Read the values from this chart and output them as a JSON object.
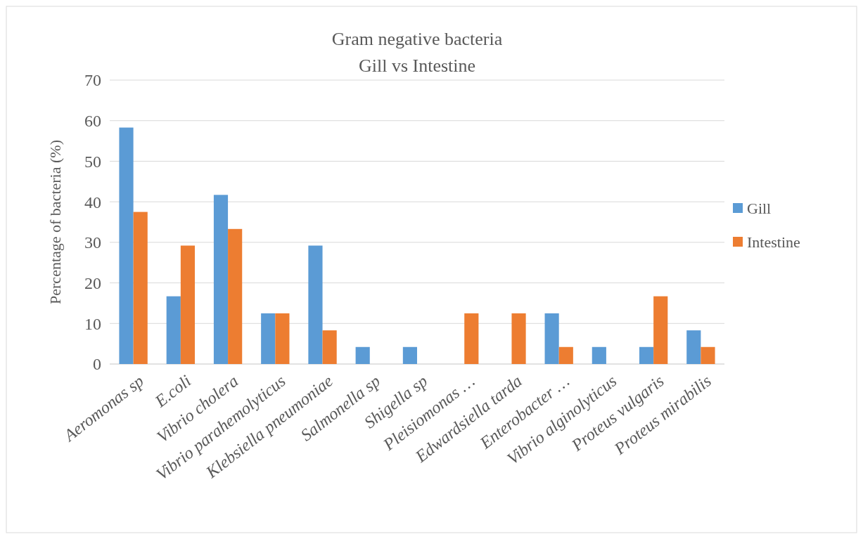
{
  "chart_data": {
    "type": "bar",
    "title": "Gram negative bacteria",
    "subtitle": "Gill vs Intestine",
    "ylabel": "Percentage of bacteria (%)",
    "categories": [
      "Aeromonas sp",
      "E.coli",
      "Vibrio cholera",
      "Vibrio parahemolyticus",
      "Klebsiella pneumoniae",
      "Salmonella sp",
      "Shigella sp",
      "Pleisiomonas …",
      "Edwardsiella tarda",
      "Enterobacter …",
      "Vibrio alginolyticus",
      "Proteus vulgaris",
      "Proteus mirabilis"
    ],
    "series": [
      {
        "name": "Gill",
        "color": "#5b9bd5",
        "values": [
          58.3,
          16.7,
          41.7,
          12.5,
          29.2,
          4.2,
          4.2,
          0,
          0,
          12.5,
          4.2,
          4.2,
          8.3
        ]
      },
      {
        "name": "Intestine",
        "color": "#ed7d31",
        "values": [
          37.5,
          29.2,
          33.3,
          12.5,
          8.3,
          0,
          0,
          12.5,
          12.5,
          4.2,
          0,
          16.7,
          4.2
        ]
      }
    ],
    "ylim": [
      0,
      70
    ],
    "yticks": [
      0,
      10,
      20,
      30,
      40,
      50,
      60,
      70
    ],
    "grid": "y",
    "legend": "right"
  }
}
